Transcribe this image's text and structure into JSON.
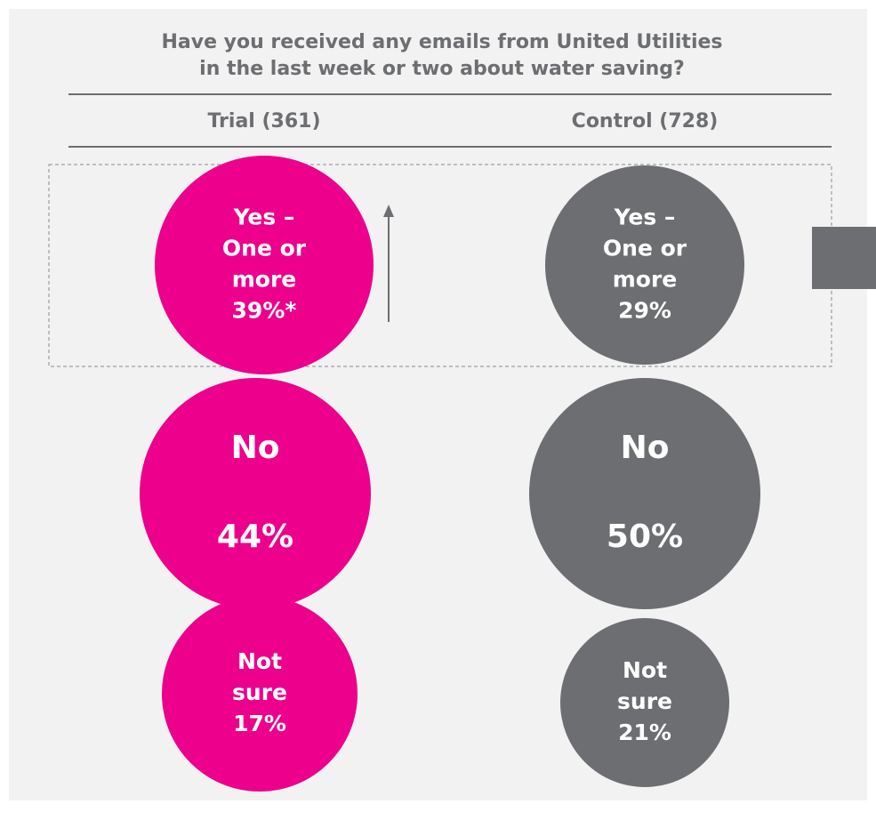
{
  "title": [
    "Have you received any emails from United Utilities",
    "in the last week or two about water saving?"
  ],
  "columns": [
    {
      "header": "Trial (361)",
      "color": "#ec008c",
      "bubbles": [
        {
          "lines": [
            "Yes –",
            "One or",
            "more",
            "39%*"
          ]
        },
        {
          "lines": [
            "No",
            "44%"
          ]
        },
        {
          "lines": [
            "Not",
            "sure",
            "17%"
          ]
        }
      ]
    },
    {
      "header": "Control (728)",
      "color": "#6d6e71",
      "bubbles": [
        {
          "lines": [
            "Yes –",
            "One or",
            "more",
            "29%"
          ]
        },
        {
          "lines": [
            "No",
            "50%"
          ]
        },
        {
          "lines": [
            "Not",
            "sure",
            "21%"
          ]
        }
      ]
    }
  ]
}
